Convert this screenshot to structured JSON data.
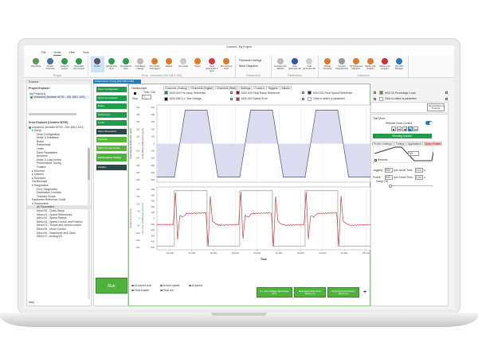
{
  "window": {
    "title": "Connect - My Project"
  },
  "menu": [
    "File",
    "Home",
    "View",
    "Tools"
  ],
  "ribbon": {
    "groups": [
      {
        "label": "Project",
        "buttons": [
          {
            "label": "Add drives",
            "color": "#5a9a5a"
          },
          {
            "label": "Project Overview",
            "color": "#4a6fa5"
          },
          {
            "label": "Upload to project",
            "color": "#2e9e4e"
          },
          {
            "label": "Download from project",
            "color": "#2e9e4e"
          }
        ]
      },
      {
        "label": "Drive - Unnamed (192.168.1.100)",
        "buttons": [
          {
            "label": "Online",
            "color": "#556",
            "selected": true
          },
          {
            "label": "Upload from drive",
            "color": "#2e9e4e"
          },
          {
            "label": "Download to drive",
            "color": "#2e9e4e"
          },
          {
            "label": "Cumulative settings",
            "color": "#bbb"
          },
          {
            "label": "Set modes and tagged",
            "color": "#e07b2a"
          },
          {
            "label": "Default",
            "color": "#e07b2a"
          },
          {
            "label": "Get Inside",
            "color": "#ccc"
          },
          {
            "label": "Reset",
            "color": "#e07b2a"
          },
          {
            "label": "Save parameters in drive",
            "color": "#d04040"
          },
          {
            "label": "Set real time clock",
            "color": "#e07b2a"
          }
        ]
      },
      {
        "label": "Parameters",
        "list": [
          "Parameter Listings",
          "Basic Diagrams"
        ]
      },
      {
        "label": "Parameters",
        "buttons": [
          {
            "label": "Compare with defaults",
            "color": "#bbb"
          },
          {
            "label": "New parameter file",
            "color": "#2a5aa8"
          },
          {
            "label": "Load parameter file",
            "color": "#ccc"
          }
        ]
      },
      {
        "label": "Advanced",
        "buttons": [
          {
            "label": "Change Firmware",
            "color": "#e07b2a"
          },
          {
            "label": "Keypad Programming",
            "color": "#999"
          },
          {
            "label": "SP Enhanced Migration",
            "color": "#e07b2a"
          },
          {
            "label": "Deploy user program",
            "color": "#e07b2a"
          },
          {
            "label": "Delete user program",
            "color": "#d03030"
          },
          {
            "label": "SD Card Manager",
            "color": "#2a7ab8"
          }
        ]
      }
    ]
  },
  "explorer": {
    "header": "Explorer",
    "project_title": "Project Explorer",
    "project_name": "My Project(4)",
    "project_drive": "Unnamed (Unidrive M700 - 192.168.1.100)",
    "drive_title": "Drive Explorer (Unidrive M700)",
    "drive_root": "Unnamed (Unidrive M700 - 192.168.1.100)",
    "tree": [
      {
        "label": "Setup",
        "level": 1,
        "expander": "▾"
      },
      {
        "label": "Drive Configuration",
        "level": 2
      },
      {
        "label": "Motor & Feedback",
        "level": 2
      },
      {
        "label": "Brake",
        "level": 2
      },
      {
        "label": "References",
        "level": 2
      },
      {
        "label": "Limits",
        "level": 2
      },
      {
        "label": "Save Parameters",
        "level": 2
      },
      {
        "label": "Autotune",
        "level": 2
      },
      {
        "label": "Motor & Load Inertia",
        "level": 2
      },
      {
        "label": "Performance Tuning",
        "level": 2
      },
      {
        "label": "Finalize",
        "level": 2
      },
      {
        "label": "Ethernet",
        "level": 1,
        "expander": "▸"
      },
      {
        "label": "Options",
        "level": 1,
        "expander": "▸"
      },
      {
        "label": "Solutions",
        "level": 1,
        "expander": "▸"
      },
      {
        "label": "Oscilloscope",
        "level": 1
      },
      {
        "label": "Diagnostics",
        "level": 1,
        "expander": "▾"
      },
      {
        "label": "Error Diagnostics",
        "level": 2
      },
      {
        "label": "Destination Conflicts",
        "level": 2
      },
      {
        "label": "Onboard Scope",
        "level": 2
      },
      {
        "label": "Parameter Reference Guide",
        "level": 1
      },
      {
        "label": "Parameters",
        "level": 1,
        "expander": "▾"
      },
      {
        "label": "All Parameters",
        "level": 2,
        "selected": true
      },
      {
        "label": "Menu 00 - Quick Setup",
        "level": 2
      },
      {
        "label": "Menu 01 - Speed References",
        "level": 2
      },
      {
        "label": "Menu 02 - Speed Ramps",
        "level": 2
      },
      {
        "label": "Menu 03 - Speed Control and Position",
        "level": 2
      },
      {
        "label": "Menu 04 - Torque and current control",
        "level": 2
      },
      {
        "label": "Menu 05 - Motor Control",
        "level": 2
      },
      {
        "label": "Menu 06 - Sequencer and Clock",
        "level": 2
      },
      {
        "label": "Menu 07 - Analog I/O",
        "level": 2
      }
    ],
    "footer": "Help"
  },
  "document_tab": "Performance Tuning (192.168.1.100)",
  "workflow": [
    {
      "label": "Drive Configuration",
      "style": "green"
    },
    {
      "label": "Motor & Feedback",
      "style": "green"
    },
    {
      "label": "Brake",
      "style": "green"
    },
    {
      "label": "References",
      "style": "green"
    },
    {
      "label": "Limits",
      "style": "green"
    },
    {
      "label": "Save Parameters",
      "style": "dark"
    },
    {
      "label": "Autotune",
      "style": "lime"
    },
    {
      "label": "Motor & Load Inertia",
      "style": "lime"
    },
    {
      "label": "Performance Tuning",
      "style": "active"
    },
    {
      "label": "Finalize",
      "style": "dark"
    }
  ],
  "run_label": "Run",
  "oscilloscope": {
    "title": "Oscilloscope",
    "stop_label": "Stop",
    "time_div_label": "Time / Div",
    "time_div_value": "1",
    "tabs": [
      "Channels (Analog)",
      "Channels (Digital)",
      "Channels (Math)",
      "Settings",
      "Cursors",
      "Triggers",
      "Values"
    ],
    "channels": [
      {
        "label": "MX0.003 Pre-ramp Reference",
        "color": "#1e8a7a",
        "checked": true
      },
      {
        "label": "MX0.003 Final Ramp Reference",
        "color": "#8a1e22",
        "checked": true
      },
      {
        "label": "MX0.001 Final Speed Reference",
        "color": "#24245e",
        "checked": true
      },
      {
        "label": "MX0.03 Percentage Load",
        "color": "#7a8a2a",
        "checked": false
      },
      {
        "label": "MX0.005 D.c. Bus Voltage",
        "color": "#000000",
        "checked": false
      },
      {
        "label": "MX0.003 Speed Error",
        "color": "#d42a2a",
        "checked": true
      },
      {
        "label": "Click to select a parameter",
        "color": "#ffffff",
        "checked": false
      },
      {
        "label": "Click to select a parameter",
        "color": "#ffffff",
        "checked": false
      }
    ],
    "record_label": "Record/Append Tracking"
  },
  "status_legend": [
    "At current limit",
    "At zero speed",
    "At speed",
    "Final enable",
    "Final run"
  ],
  "value_buttons": [
    {
      "label": "D.c. Bus Voltage High Range",
      "value": "46 V"
    },
    {
      "label": "Final Ramp Reference",
      "value": "500.0 rpm"
    },
    {
      "label": "Final Speed Reference",
      "value": "500.0 rpm"
    }
  ],
  "add_label": "+",
  "test_move": {
    "title": "Test Move",
    "release_label": "Release Drive Control",
    "release_on": true,
    "status": "Running forward",
    "tabs": [
      "Profile Settings",
      "Tuning",
      "Application",
      "Motor Rotate"
    ],
    "profile_value": "50",
    "reverse_label": "Reverse",
    "reverse_checked": true,
    "jogging_label": "Jogging",
    "jogging_value": "500",
    "jogging_unit": "rpm",
    "profile_label": "Profile",
    "profile_speed": "500",
    "profile_unit": "rpm",
    "accel_label": "Accel Time",
    "accel_value": "0.10",
    "accel_unit": "s",
    "decel_label": "Decel Time",
    "decel_value": "0.20",
    "decel_unit": "s",
    "damp_label": "Damp (%)",
    "damp_value": 0
  },
  "chart_data": [
    {
      "type": "area",
      "xlabel": "Time",
      "x_unit": "s",
      "xlim": [
        15.4,
        25.2
      ],
      "x_ticks": [
        "16.00s",
        "17.00s",
        "18.00s",
        "19.00s",
        "20.00s",
        "21.00s",
        "22.00s",
        "23.00s",
        "24.00s",
        "25.00s"
      ],
      "y_axes": [
        {
          "label": "Final Speed Reference (rpm)",
          "ticks": [
            500,
            400,
            300,
            200,
            100,
            0,
            -100,
            -200,
            -300,
            -400,
            -500
          ]
        },
        {
          "label": "Final Ramp Reference (rpm)",
          "ticks": [
            500,
            400,
            300,
            200,
            100,
            0,
            -100,
            -200,
            -300,
            -400,
            -500
          ]
        }
      ],
      "ylim": [
        -540,
        540
      ],
      "grid": true,
      "series": [
        {
          "name": "Final Ramp Reference",
          "color": "#555566",
          "fill": "#dcdcf0",
          "x": [
            15.4,
            16.2,
            16.7,
            17.7,
            18.2,
            19.2,
            19.7,
            20.7,
            21.2,
            22.2,
            22.7,
            23.7,
            24.2,
            25.2
          ],
          "y": [
            -500,
            -500,
            500,
            500,
            -500,
            -500,
            500,
            500,
            -500,
            -500,
            500,
            500,
            -500,
            -500
          ]
        }
      ]
    },
    {
      "type": "line",
      "xlabel": "Time",
      "xlim": [
        15.4,
        25.2
      ],
      "y_axes": [
        {
          "label": "Speed Error (rpm)",
          "ticks": [
            200,
            150,
            100,
            50,
            0,
            -50,
            -100,
            -150,
            -200
          ]
        },
        {
          "label": "Pre-ramp Ref/Speed ref (rpm)",
          "ticks": [
            500,
            400,
            300,
            200,
            100,
            0,
            -100,
            -200,
            -300,
            -400,
            -500
          ]
        }
      ],
      "ylim": [
        -210,
        210
      ],
      "grid": true,
      "series": [
        {
          "name": "Pre-ramp Reference",
          "color": "#999999",
          "axis": 1,
          "x": [
            15.4,
            16.2,
            16.2,
            17.7,
            17.7,
            19.2,
            19.2,
            20.7,
            20.7,
            22.2,
            22.2,
            23.7,
            23.7,
            25.2
          ],
          "y": [
            -500,
            -500,
            500,
            500,
            -500,
            -500,
            500,
            500,
            -500,
            -500,
            500,
            500,
            -500,
            -500
          ]
        },
        {
          "name": "Speed Error",
          "color": "#c0282e",
          "axis": 0,
          "x": [
            15.4,
            16.15,
            16.25,
            16.35,
            16.45,
            16.6,
            16.75,
            17.65,
            17.75,
            17.85,
            17.95,
            18.1,
            18.3,
            19.15,
            19.25,
            19.35,
            19.45,
            19.6,
            19.75,
            20.65,
            20.75,
            20.85,
            20.95,
            21.1,
            21.3,
            22.15,
            22.25,
            22.35,
            22.45,
            22.6,
            22.75,
            23.65,
            23.75,
            23.85,
            23.95,
            24.1,
            24.3,
            25.2
          ],
          "y": [
            -45,
            -45,
            190,
            -150,
            20,
            10,
            35,
            40,
            -200,
            160,
            -20,
            -40,
            -50,
            -45,
            190,
            -150,
            20,
            10,
            35,
            40,
            -200,
            160,
            -20,
            -40,
            -50,
            -45,
            190,
            -150,
            20,
            10,
            35,
            40,
            -200,
            160,
            -20,
            -40,
            -50,
            -45
          ]
        }
      ]
    }
  ]
}
